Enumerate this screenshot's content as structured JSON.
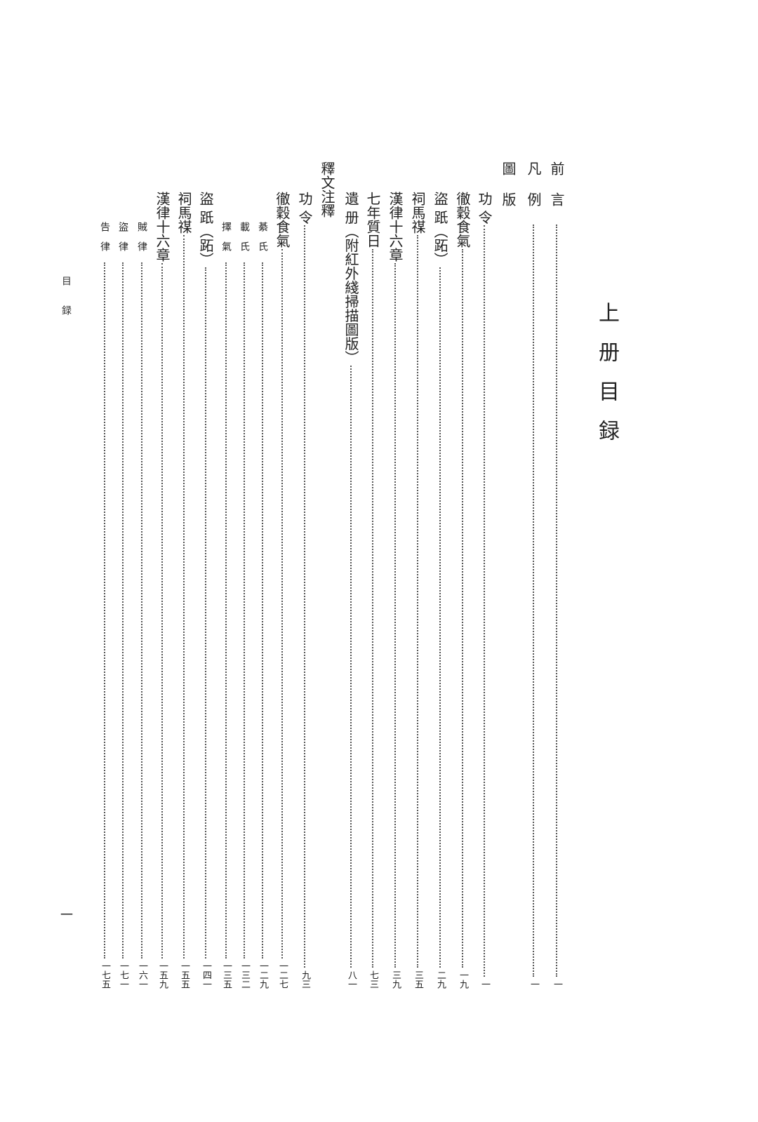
{
  "title": "上册目録",
  "running_head": "目録",
  "folio": "一",
  "entries": [
    {
      "label": "前言",
      "page": "一",
      "level": 1,
      "spaced": true
    },
    {
      "label": "凡例",
      "page": "一",
      "level": 1,
      "spaced": true
    },
    {
      "label": "圖版",
      "page": "",
      "level": 1,
      "spaced": true
    },
    {
      "label": "功 令",
      "page": "一",
      "level": 2
    },
    {
      "label": "徹穀食氣",
      "page": "一九",
      "level": 2
    },
    {
      "label": "盜 䟗（跖）",
      "page": "二九",
      "level": 2
    },
    {
      "label": "祠馬禖",
      "page": "三五",
      "level": 2
    },
    {
      "label": "漢律十六章",
      "page": "三九",
      "level": 2
    },
    {
      "label": "七年質日",
      "page": "七三",
      "level": 2
    },
    {
      "label": "遺 册（附紅外綫掃描圖版）",
      "page": "八一",
      "level": 2
    },
    {
      "label": "釋文注釋",
      "page": "",
      "level": 1
    },
    {
      "label": "功 令",
      "page": "九三",
      "level": 2
    },
    {
      "label": "徹穀食氣",
      "page": "一二七",
      "level": 2
    },
    {
      "label": "綦氏",
      "page": "一二九",
      "level": 3
    },
    {
      "label": "載氏",
      "page": "一三二",
      "level": 3
    },
    {
      "label": "擇氣",
      "page": "一三五",
      "level": 3
    },
    {
      "label": "盜 䟗（跖）",
      "page": "一四一",
      "level": 2
    },
    {
      "label": "祠馬禖",
      "page": "一五五",
      "level": 2
    },
    {
      "label": "漢律十六章",
      "page": "一五九",
      "level": 2
    },
    {
      "label": "賊律",
      "page": "一六一",
      "level": 3
    },
    {
      "label": "盜律",
      "page": "一七一",
      "level": 3
    },
    {
      "label": "告律",
      "page": "一七五",
      "level": 3
    }
  ]
}
